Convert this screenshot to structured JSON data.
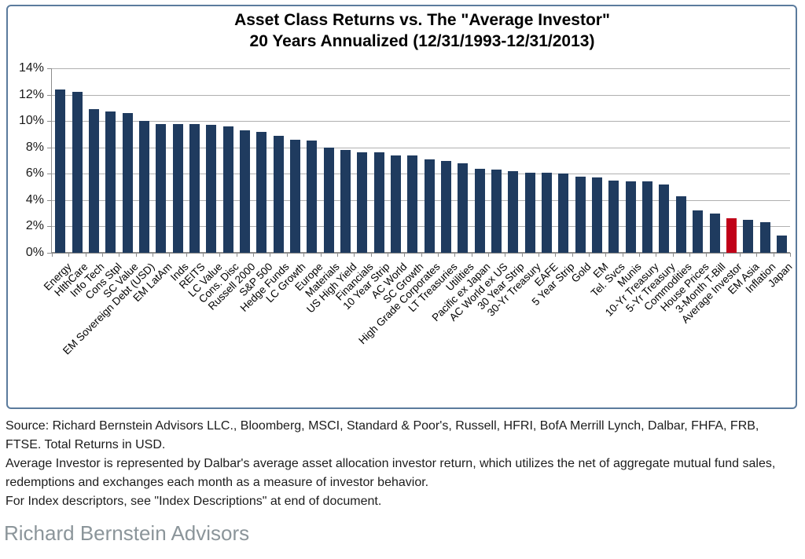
{
  "title": {
    "line1": "Asset Class Returns vs. The \"Average Investor\"",
    "line2": "20 Years Annualized (12/31/1993-12/31/2013)"
  },
  "footer": {
    "source_note": "Source: Richard Bernstein Advisors LLC., Bloomberg, MSCI, Standard & Poor's, Russell, HFRI, BofA Merrill Lynch, Dalbar, FHFA, FRB, FTSE.  Total Returns in USD.",
    "average_investor_note": "Average Investor is represented by Dalbar's average asset allocation investor return, which utilizes the net of aggregate mutual fund sales, redemptions and exchanges each month as a measure of investor behavior.",
    "index_note": "For Index descriptors, see \"Index Descriptions\" at end of document."
  },
  "logo_text": "Richard Bernstein Advisors",
  "colors": {
    "bar": "#1F3B5F",
    "highlight_bar": "#C00018",
    "frame_border": "#5B7B9D",
    "gridline": "#b0b0b0",
    "axis": "#8c8c8c",
    "logo_text": "#8B959A"
  },
  "chart_data": {
    "type": "bar",
    "title": "Asset Class Returns vs. The \"Average Investor\" 20 Years Annualized (12/31/1993-12/31/2013)",
    "xlabel": "",
    "ylabel": "",
    "ylim": [
      0,
      14
    ],
    "yticks": [
      0,
      2,
      4,
      6,
      8,
      10,
      12,
      14
    ],
    "ytick_suffix": "%",
    "grid": true,
    "legend": false,
    "categories": [
      "Energy",
      "HlthCare",
      "Info Tech",
      "Cons Stpl",
      "SC Value",
      "EM Sovereign Debt (USD)",
      "EM LatAm",
      "Inds",
      "REITS",
      "LC Value",
      "Cons. Disc",
      "Russell 2000",
      "S&P 500",
      "Hedge Funds",
      "LC Growth",
      "Europe",
      "Materials",
      "US High Yield",
      "Financials",
      "10 Year Strip",
      "AC World",
      "SC Growth",
      "High Grade Corporates",
      "LT Treasuries",
      "Utilities",
      "Pacific ex Japan",
      "AC World ex US",
      "30 Year Strip",
      "30-Yr Treasury",
      "EAFE",
      "5 Year Strip",
      "Gold",
      "EM",
      "Tel. Svcs",
      "Munis",
      "10-Yr Treasury",
      "5-Yr Treasury",
      "Commodities",
      "House Prices",
      "3-Month T-Bill",
      "Average Investor",
      "EM Asia",
      "Inflation",
      "Japan"
    ],
    "values": [
      12.4,
      12.2,
      10.9,
      10.7,
      10.6,
      10.0,
      9.8,
      9.8,
      9.8,
      9.7,
      9.6,
      9.3,
      9.2,
      8.9,
      8.6,
      8.5,
      8.0,
      7.8,
      7.6,
      7.6,
      7.4,
      7.4,
      7.1,
      7.0,
      6.8,
      6.4,
      6.3,
      6.2,
      6.1,
      6.1,
      6.0,
      5.8,
      5.7,
      5.5,
      5.4,
      5.4,
      5.2,
      4.3,
      3.2,
      3.0,
      2.6,
      2.5,
      2.3,
      1.3
    ],
    "highlight_index": 40,
    "highlight_category": "Average Investor"
  }
}
